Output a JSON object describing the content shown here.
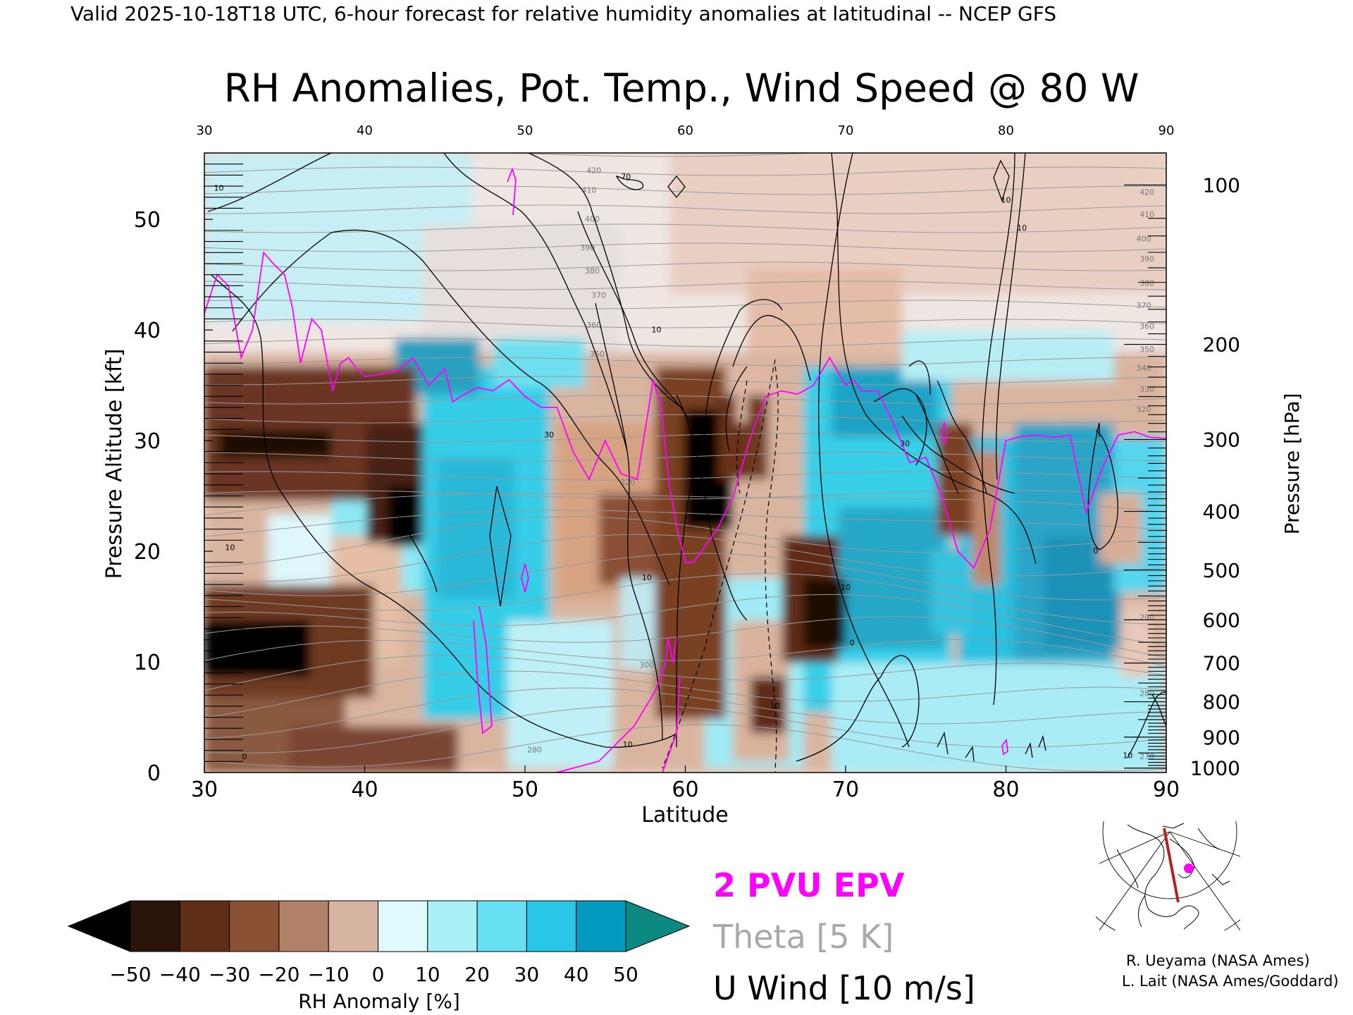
{
  "header": {
    "top_line": "Valid 2025-10-18T18 UTC, 6-hour forecast for relative humidity anomalies at latitudinal -- NCEP GFS",
    "title": "RH Anomalies, Pot. Temp., Wind Speed @ 80 W"
  },
  "chart_data": {
    "type": "heatmap",
    "title": "RH Anomalies, Pot. Temp., Wind Speed @ 80 W",
    "xlabel": "Latitude",
    "ylabel": "Pressure Altitude [kft]",
    "y2label": "Pressure [hPa]",
    "xlim": [
      30,
      90
    ],
    "ylim": [
      0,
      56
    ],
    "x_ticks": [
      30,
      40,
      50,
      60,
      70,
      80,
      90
    ],
    "y_ticks": [
      0,
      10,
      20,
      30,
      40,
      50
    ],
    "pressure_ticks": [
      {
        "hpa": 100,
        "kft": 53.1
      },
      {
        "hpa": 200,
        "kft": 38.7
      },
      {
        "hpa": 300,
        "kft": 30.1
      },
      {
        "hpa": 400,
        "kft": 23.6
      },
      {
        "hpa": 500,
        "kft": 18.3
      },
      {
        "hpa": 600,
        "kft": 13.8
      },
      {
        "hpa": 700,
        "kft": 9.9
      },
      {
        "hpa": 800,
        "kft": 6.4
      },
      {
        "hpa": 900,
        "kft": 3.2
      },
      {
        "hpa": 1000,
        "kft": 0.4
      }
    ],
    "theta_labels": [
      {
        "text": "420",
        "lat": 54.3,
        "kft": 54.2
      },
      {
        "text": "410",
        "lat": 54.0,
        "kft": 52.4
      },
      {
        "text": "400",
        "lat": 54.2,
        "kft": 49.8
      },
      {
        "text": "390",
        "lat": 53.9,
        "kft": 47.2
      },
      {
        "text": "380",
        "lat": 54.2,
        "kft": 45.1
      },
      {
        "text": "370",
        "lat": 54.6,
        "kft": 42.9
      },
      {
        "text": "360",
        "lat": 54.3,
        "kft": 40.2
      },
      {
        "text": "350",
        "lat": 54.5,
        "kft": 37.6
      },
      {
        "text": "320",
        "lat": 56.4,
        "kft": 26.0
      },
      {
        "text": "300",
        "lat": 57.6,
        "kft": 9.5
      },
      {
        "text": "280",
        "lat": 50.6,
        "kft": 1.8
      },
      {
        "text": "420",
        "lat": 88.8,
        "kft": 52.2
      },
      {
        "text": "410",
        "lat": 88.8,
        "kft": 50.2
      },
      {
        "text": "400",
        "lat": 88.6,
        "kft": 48.0
      },
      {
        "text": "390",
        "lat": 88.8,
        "kft": 46.2
      },
      {
        "text": "380",
        "lat": 88.8,
        "kft": 44.0
      },
      {
        "text": "370",
        "lat": 88.6,
        "kft": 42.0
      },
      {
        "text": "360",
        "lat": 88.8,
        "kft": 40.1
      },
      {
        "text": "350",
        "lat": 88.8,
        "kft": 38.0
      },
      {
        "text": "340",
        "lat": 88.6,
        "kft": 36.3
      },
      {
        "text": "330",
        "lat": 88.8,
        "kft": 34.4
      },
      {
        "text": "320",
        "lat": 88.6,
        "kft": 32.6
      },
      {
        "text": "290",
        "lat": 88.8,
        "kft": 13.8
      },
      {
        "text": "280",
        "lat": 88.8,
        "kft": 6.9
      },
      {
        "text": "270",
        "lat": 88.8,
        "kft": 1.2
      }
    ],
    "wind_labels": [
      {
        "text": "10",
        "lat": 30.9,
        "kft": 52.6
      },
      {
        "text": "70",
        "lat": 56.3,
        "kft": 53.6
      },
      {
        "text": "10",
        "lat": 58.2,
        "kft": 39.8
      },
      {
        "text": "30",
        "lat": 51.5,
        "kft": 30.3
      },
      {
        "text": "10",
        "lat": 57.6,
        "kft": 17.4
      },
      {
        "text": "10",
        "lat": 80.0,
        "kft": 51.5
      },
      {
        "text": "10",
        "lat": 81.0,
        "kft": 49.0
      },
      {
        "text": "30",
        "lat": 73.7,
        "kft": 29.5
      },
      {
        "text": "10",
        "lat": 70.0,
        "kft": 16.5
      },
      {
        "text": "0",
        "lat": 70.4,
        "kft": 11.5
      },
      {
        "text": "10",
        "lat": 65.6,
        "kft": 5.8
      },
      {
        "text": "10",
        "lat": 31.6,
        "kft": 20.1
      },
      {
        "text": "0",
        "lat": 32.5,
        "kft": 1.2
      },
      {
        "text": "10",
        "lat": 56.4,
        "kft": 2.3
      },
      {
        "text": "0",
        "lat": 85.6,
        "kft": 19.8
      },
      {
        "text": "10",
        "lat": 87.6,
        "kft": 1.3
      }
    ],
    "series": [
      {
        "name": "2 PVU EPV",
        "color": "#ff00ff",
        "x": [
          30,
          30.8,
          31.5,
          32.3,
          33,
          33.7,
          34.3,
          35,
          35.5,
          36,
          36.7,
          37.3,
          38,
          38.5,
          39,
          39.5,
          40,
          41,
          42,
          43,
          44,
          45,
          45.5,
          46,
          47,
          48,
          49,
          50,
          51,
          52,
          53,
          54,
          55,
          56,
          57,
          58,
          58.5,
          59,
          59.5,
          60,
          60.5,
          61,
          62,
          63,
          64,
          65,
          66,
          67,
          68,
          69,
          70,
          70.5,
          71,
          72,
          73,
          74,
          75,
          76,
          77,
          78,
          79,
          80,
          81,
          82,
          83,
          84,
          85,
          86,
          87,
          88,
          89,
          90
        ],
        "y": [
          41.5,
          45,
          44,
          37.5,
          40,
          47,
          46,
          45,
          42,
          37,
          41,
          40,
          34.5,
          37,
          37.5,
          36.5,
          35.8,
          36,
          36.3,
          37.5,
          35,
          36.5,
          33.5,
          34,
          34.8,
          34.5,
          35.5,
          34,
          33,
          33,
          29,
          26.5,
          30,
          27,
          26.5,
          35.5,
          33,
          26,
          22,
          19,
          19,
          20,
          22,
          25,
          30,
          34,
          34.5,
          34.2,
          35,
          37.5,
          35,
          35.5,
          34.5,
          34.5,
          31.5,
          28,
          28.5,
          25,
          20,
          18.5,
          22,
          30,
          30.4,
          30.5,
          30.3,
          30.5,
          23.5,
          27.5,
          30.5,
          30.8,
          30.3,
          30.2
        ]
      },
      {
        "name": "Theta [5 K]",
        "color": "#a0a0a0",
        "x": [],
        "y": []
      },
      {
        "name": "U Wind [10 m/s]",
        "color": "#000000",
        "x": [],
        "y": []
      }
    ],
    "colorbar": {
      "label": "RH Anomaly [%]",
      "ticks": [
        "−50",
        "−40",
        "−30",
        "−20",
        "−10",
        "0",
        "10",
        "20",
        "30",
        "40",
        "50"
      ],
      "under_color": "#000000",
      "colors": [
        "#2a130a",
        "#5e2e16",
        "#8a5232",
        "#b2816a",
        "#d7b3a1",
        "#f3e4de",
        "#dff9fc",
        "#a9f0f8",
        "#66e0f2",
        "#2ac6e8",
        "#0499bf"
      ],
      "over_color": "#0c8a82"
    },
    "legend": {
      "epv": "2 PVU EPV",
      "theta": "Theta [5 K]",
      "wind": "U Wind [10 m/s]",
      "placement": "bottom-center"
    },
    "inset_map": {
      "marker_color": "#ff00ff",
      "section_color": "#b22222"
    }
  },
  "credits": {
    "line1": "R. Ueyama (NASA Ames)",
    "line2": "L. Lait (NASA Ames/Goddard)"
  }
}
